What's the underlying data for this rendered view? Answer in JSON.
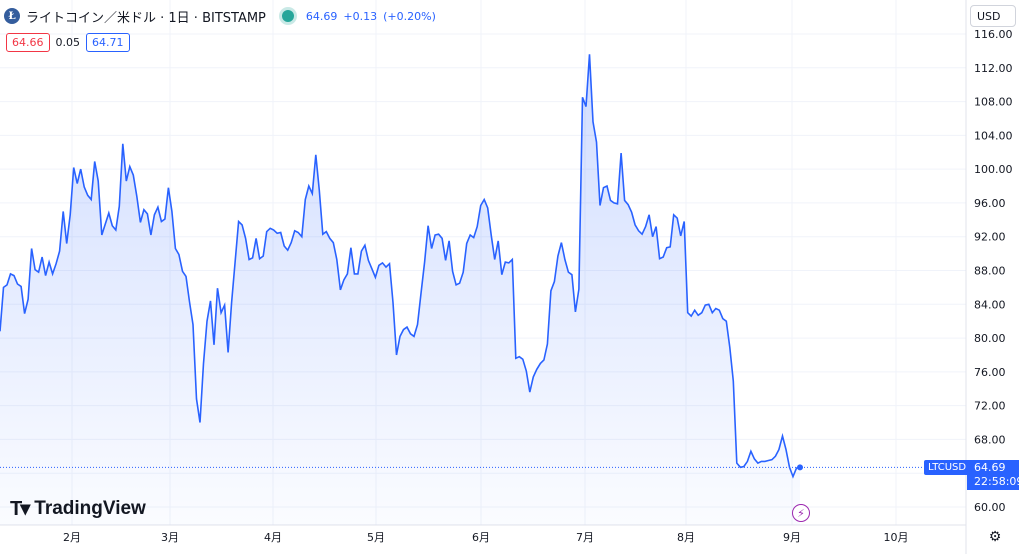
{
  "header": {
    "coin_icon": "litecoin-icon",
    "symbol_title": "ライトコイン／米ドル · 1日 · BITSTAMP",
    "status_color": "#26a69a",
    "last": "64.69",
    "change": "+0.13",
    "change_pct": "(+0.20%)",
    "bid": "64.66",
    "spread": "0.05",
    "ask": "64.71"
  },
  "currency": "USD",
  "brand": "TradingView",
  "price_tag": {
    "symbol": "LTCUSD",
    "price": "64.69",
    "countdown": "22:58:09"
  },
  "colors": {
    "line": "#2962ff",
    "bid": "#f23645",
    "ask": "#2962ff"
  },
  "chart_data": {
    "type": "area",
    "ylim": [
      57.6,
      117.2
    ],
    "yticks": [
      60,
      64,
      68,
      72,
      76,
      80,
      84,
      88,
      92,
      96,
      100,
      104,
      108,
      112,
      116
    ],
    "ytick_labels": [
      "60.00",
      "64.00",
      "68.00",
      "72.00",
      "76.00",
      "80.00",
      "84.00",
      "88.00",
      "92.00",
      "96.00",
      "100.00",
      "104.00",
      "108.00",
      "112.00",
      "116.00"
    ],
    "x_labels": [
      "2月",
      "3月",
      "4月",
      "5月",
      "6月",
      "7月",
      "8月",
      "9月",
      "10月"
    ],
    "last_value": 64.69,
    "values": [
      80.8,
      86.0,
      86.3,
      87.6,
      87.4,
      86.4,
      86.1,
      82.9,
      84.6,
      90.6,
      88.1,
      87.8,
      89.6,
      87.4,
      89.0,
      87.6,
      88.8,
      90.3,
      95.0,
      91.2,
      94.6,
      100.2,
      98.3,
      100.0,
      97.9,
      96.9,
      96.4,
      100.9,
      98.6,
      92.2,
      93.5,
      94.8,
      93.3,
      92.8,
      95.6,
      103.0,
      98.6,
      100.3,
      99.3,
      96.8,
      93.7,
      95.2,
      94.7,
      92.2,
      94.6,
      95.5,
      93.8,
      94.1,
      97.8,
      95.0,
      90.6,
      89.9,
      87.9,
      87.3,
      84.3,
      81.6,
      72.8,
      70.0,
      77.0,
      82.0,
      84.4,
      79.2,
      85.9,
      83.0,
      83.9,
      78.3,
      84.2,
      89.0,
      93.8,
      93.4,
      91.8,
      89.3,
      89.5,
      91.8,
      89.4,
      89.7,
      92.6,
      93.0,
      92.8,
      92.4,
      92.5,
      90.9,
      90.4,
      91.3,
      92.7,
      92.5,
      92.0,
      96.4,
      98.0,
      97.1,
      101.7,
      97.5,
      92.3,
      92.6,
      91.8,
      91.3,
      89.3,
      85.7,
      86.9,
      87.6,
      90.7,
      87.6,
      87.6,
      90.3,
      91.0,
      89.2,
      88.2,
      87.2,
      88.6,
      88.9,
      88.4,
      88.8,
      84.2,
      78.0,
      80.2,
      81.0,
      81.3,
      80.5,
      80.2,
      81.6,
      85.4,
      89.0,
      93.3,
      90.6,
      92.2,
      92.3,
      91.8,
      89.2,
      91.5,
      87.9,
      86.3,
      86.5,
      87.8,
      91.2,
      92.2,
      91.9,
      93.2,
      95.7,
      96.4,
      95.4,
      92.2,
      89.3,
      91.5,
      87.5,
      89.0,
      88.9,
      89.3,
      77.6,
      77.8,
      77.5,
      76.1,
      73.6,
      75.4,
      76.3,
      77.0,
      77.4,
      79.3,
      85.6,
      86.7,
      89.7,
      91.3,
      89.3,
      87.8,
      87.5,
      83.1,
      85.8,
      108.5,
      107.4,
      113.6,
      105.6,
      103.2,
      95.7,
      97.8,
      98.0,
      96.3,
      96.0,
      95.9,
      101.9,
      96.3,
      95.8,
      94.9,
      93.4,
      92.7,
      92.3,
      93.2,
      94.6,
      92.0,
      93.2,
      89.4,
      89.6,
      90.7,
      90.8,
      94.6,
      94.2,
      92.1,
      93.8,
      83.0,
      82.6,
      83.3,
      82.7,
      83.0,
      83.9,
      84.0,
      83.0,
      83.5,
      83.3,
      82.3,
      82.0,
      78.9,
      74.9,
      65.2,
      64.7,
      64.8,
      65.4,
      66.6,
      65.7,
      65.2,
      65.4,
      65.4,
      65.5,
      65.6,
      66.0,
      66.8,
      68.4,
      66.8,
      64.7,
      63.6,
      64.6,
      64.69
    ]
  }
}
